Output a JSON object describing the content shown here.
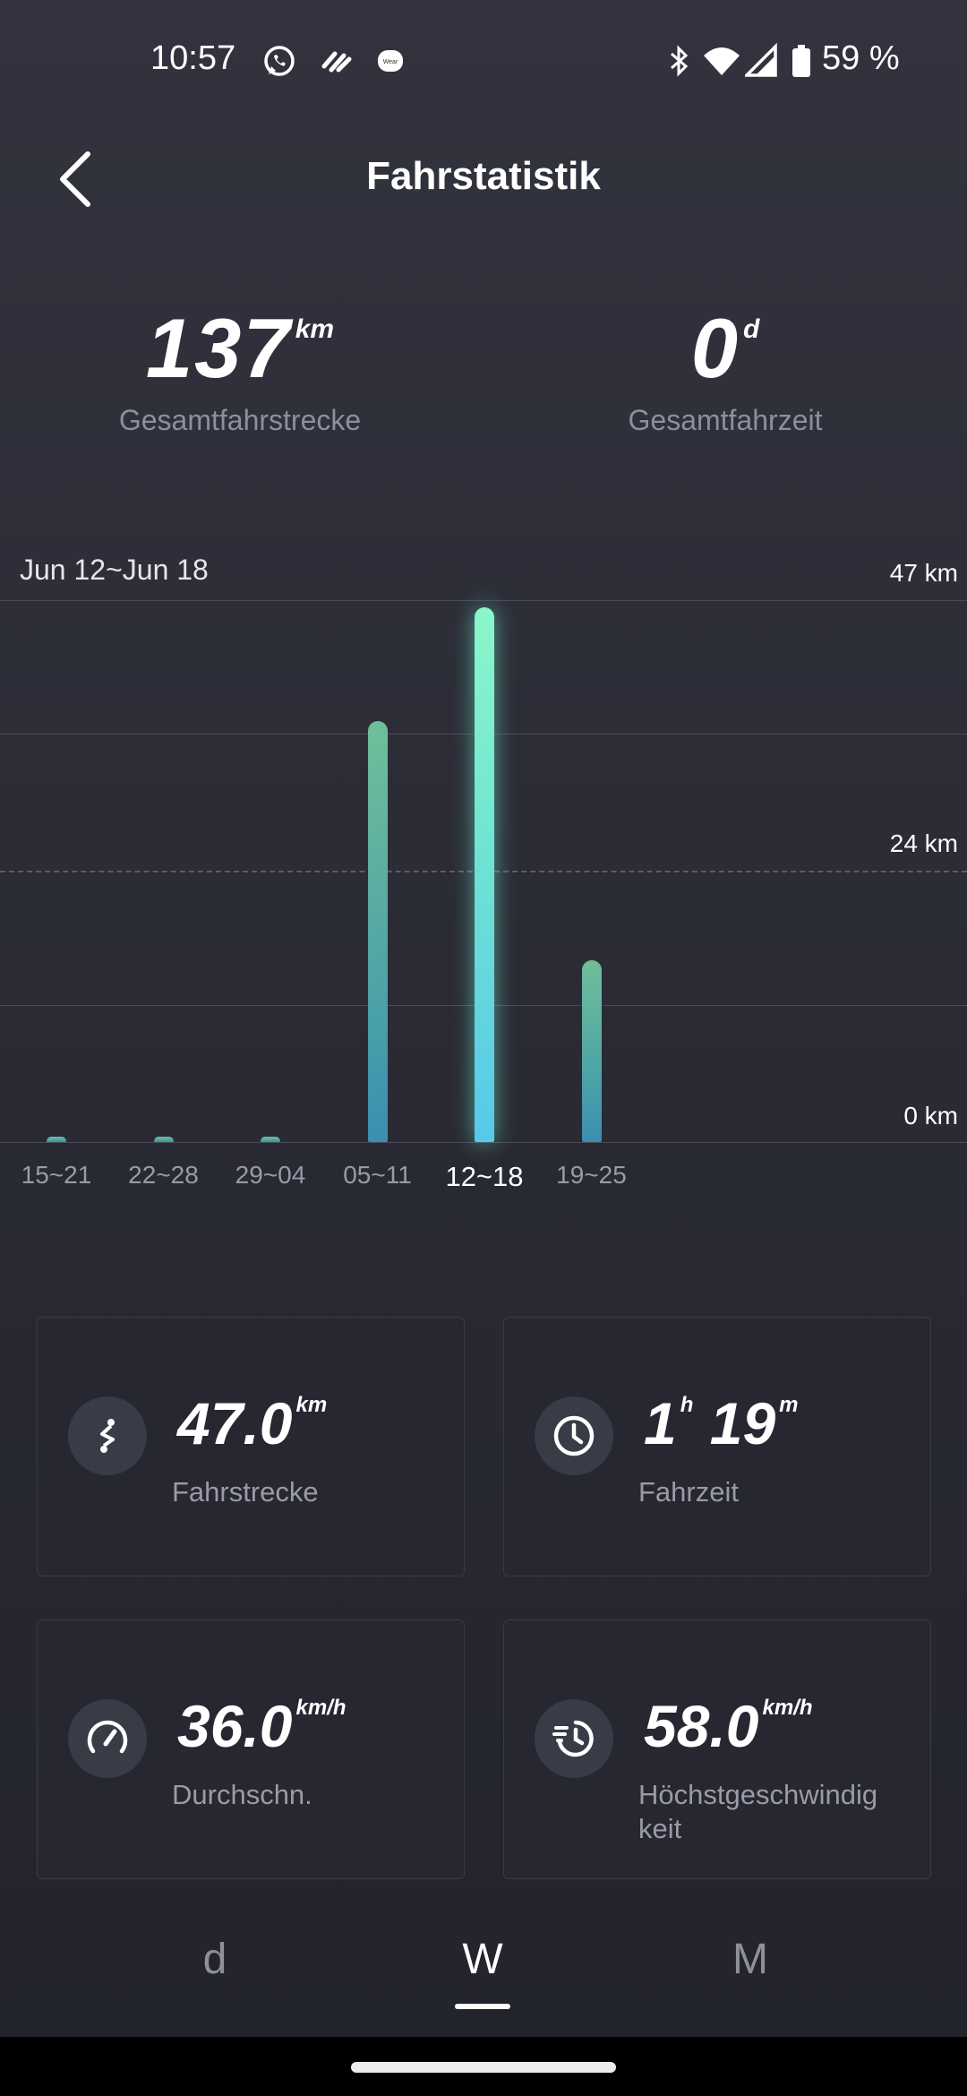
{
  "status_bar": {
    "time": "10:57",
    "battery": "59 %",
    "icons": [
      "whatsapp-icon",
      "app-icon",
      "wear-icon",
      "bluetooth-icon",
      "wifi-icon",
      "signal-icon",
      "battery-icon"
    ]
  },
  "header": {
    "title": "Fahrstatistik"
  },
  "totals": {
    "distance": {
      "value": "137",
      "unit": "km",
      "label": "Gesamtfahrstrecke"
    },
    "time": {
      "value": "0",
      "unit": "d",
      "label": "Gesamtfahrzeit"
    }
  },
  "chart_data": {
    "type": "bar",
    "title": "Jun 12~Jun 18",
    "categories": [
      "15~21",
      "22~28",
      "29~04",
      "05~11",
      "12~18",
      "19~25"
    ],
    "values": [
      0.5,
      0.5,
      0.5,
      37,
      47,
      16
    ],
    "selected_index": 4,
    "y_tick_labels": [
      "47 km",
      "24 km",
      "0 km"
    ],
    "ylim": [
      0,
      47
    ],
    "colors": {
      "bar": "#5fb09f",
      "selected": "#7df0c8"
    }
  },
  "cards": [
    {
      "value": "47.0",
      "unit": "km",
      "label": "Fahrstrecke",
      "icon": "route-icon"
    },
    {
      "value_h": "1",
      "unit_h": "h",
      "value_m": "19",
      "unit_m": "m",
      "label": "Fahrzeit",
      "icon": "clock-icon"
    },
    {
      "value": "36.0",
      "unit": "km/h",
      "label": "Durchschn.",
      "icon": "speedometer-icon"
    },
    {
      "value": "58.0",
      "unit": "km/h",
      "label": "Höchstgeschwindig keit",
      "icon": "max-speed-icon"
    }
  ],
  "period_tabs": [
    {
      "label": "d",
      "selected": false
    },
    {
      "label": "W",
      "selected": true
    },
    {
      "label": "M",
      "selected": false
    }
  ]
}
